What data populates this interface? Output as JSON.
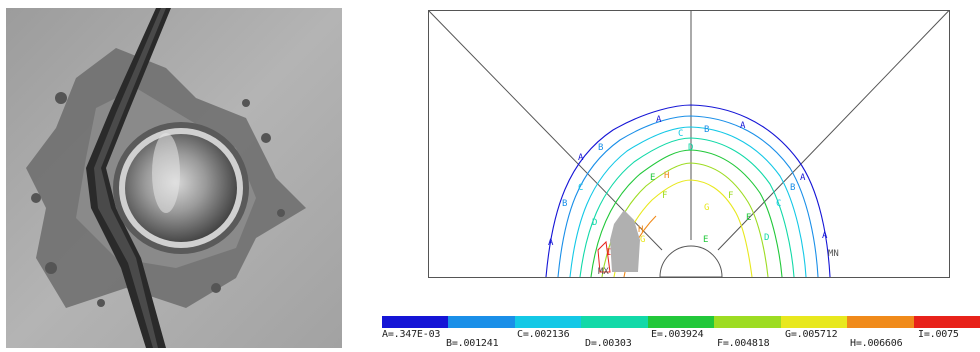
{
  "fea": {
    "contour_markers": {
      "min": "MN",
      "max": "MX",
      "letters": [
        "A",
        "B",
        "C",
        "D",
        "E",
        "F",
        "G",
        "H",
        "I"
      ]
    }
  },
  "legend": {
    "labels": [
      "A=.347E-03",
      "B=.001241",
      "C=.002136",
      "D=.00303",
      "E=.003924",
      "F=.004818",
      "G=.005712",
      "H=.006606",
      "I=.0075"
    ],
    "colors": [
      "#1515d6",
      "#1a8fe8",
      "#14c8e6",
      "#12d9a8",
      "#22c83a",
      "#9ddc22",
      "#e8e81e",
      "#f08a1a",
      "#e8221a"
    ]
  }
}
